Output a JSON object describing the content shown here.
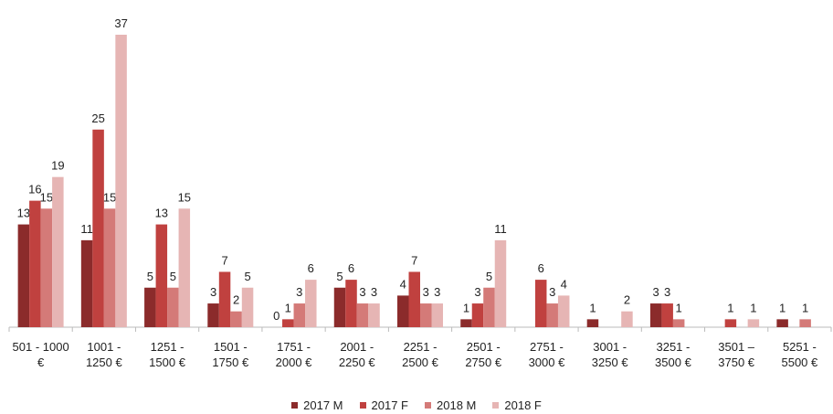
{
  "chart_data": {
    "type": "bar",
    "categories": [
      "501 - 1000\n€",
      "1001 -\n1250 €",
      "1251 -\n1500 €",
      "1501 -\n1750 €",
      "1751 -\n2000 €",
      "2001 -\n2250 €",
      "2251 -\n2500 €",
      "2501 -\n2750 €",
      "2751 -\n3000 €",
      "3001 -\n3250 €",
      "3251 -\n3500 €",
      "3501 –\n3750 €",
      "5251 -\n5500 €"
    ],
    "series": [
      {
        "name": "2017 M",
        "color": "#8b2b2b",
        "values": [
          13,
          11,
          5,
          3,
          0,
          5,
          4,
          1,
          null,
          1,
          3,
          null,
          1
        ]
      },
      {
        "name": "2017 F",
        "color": "#c0413f",
        "values": [
          16,
          25,
          13,
          7,
          1,
          6,
          7,
          3,
          6,
          null,
          3,
          1,
          null
        ]
      },
      {
        "name": "2018 M",
        "color": "#d47a78",
        "values": [
          15,
          15,
          5,
          2,
          3,
          3,
          3,
          5,
          3,
          null,
          1,
          null,
          1
        ]
      },
      {
        "name": "2018 F",
        "color": "#e6b5b4",
        "values": [
          19,
          37,
          15,
          5,
          6,
          3,
          3,
          11,
          4,
          2,
          null,
          1,
          null
        ]
      }
    ],
    "legend": "bottom"
  }
}
